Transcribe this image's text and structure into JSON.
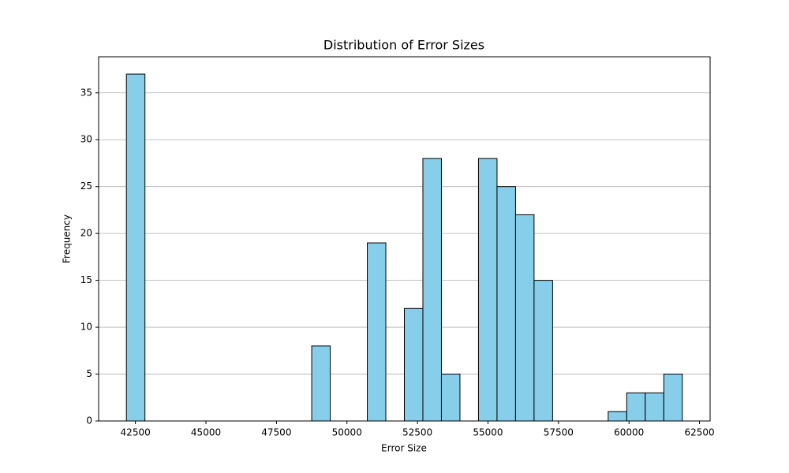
{
  "chart_data": {
    "type": "histogram",
    "title": "Distribution of Error Sizes",
    "x_label": "Error Size",
    "y_label": "Frequency",
    "bins": [
      42180,
      42837,
      43494,
      44151,
      44808,
      45465,
      46122,
      46779,
      47436,
      48093,
      48750,
      49407,
      50064,
      50721,
      51378,
      52035,
      52692,
      53349,
      54006,
      54663,
      55320,
      55977,
      56634,
      57291,
      57948,
      58605,
      59262,
      59919,
      60576,
      61233,
      61890
    ],
    "values": [
      37,
      0,
      0,
      0,
      0,
      0,
      0,
      0,
      0,
      0,
      8,
      0,
      0,
      19,
      0,
      12,
      28,
      5,
      0,
      28,
      25,
      22,
      15,
      0,
      0,
      0,
      1,
      3,
      3,
      5
    ],
    "color": "#87ceeb",
    "edge_color": "#000000",
    "xlim": [
      41195,
      62875
    ],
    "ylim": [
      0,
      38.85
    ],
    "xticks": [
      42500,
      45000,
      47500,
      50000,
      52500,
      55000,
      57500,
      60000,
      62500
    ],
    "yticks": [
      0,
      5,
      10,
      15,
      20,
      25,
      30,
      35
    ],
    "grid": "y"
  }
}
